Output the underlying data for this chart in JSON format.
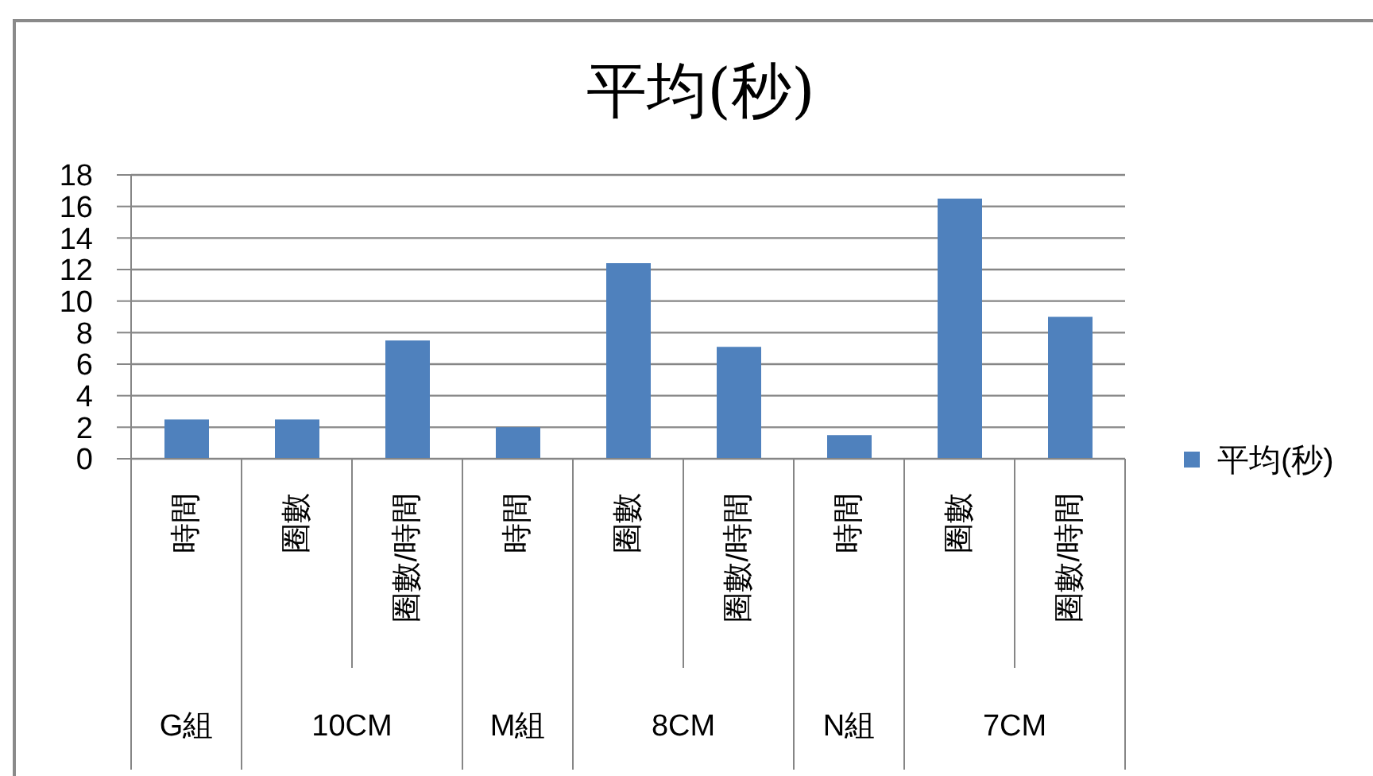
{
  "chart_data": {
    "type": "bar",
    "title": "平均(秒)",
    "categories": [
      "時間",
      "圈數",
      "圈數/時間",
      "時間",
      "圈數",
      "圈數/時間",
      "時間",
      "圈數",
      "圈數/時間"
    ],
    "series": [
      {
        "name": "平均(秒)",
        "color": "#4f81bd",
        "values": [
          2.5,
          2.5,
          7.5,
          2.0,
          12.4,
          7.1,
          1.5,
          16.5,
          9.0
        ]
      }
    ],
    "ylim": [
      0,
      18
    ],
    "yticks": [
      0,
      2,
      4,
      6,
      8,
      10,
      12,
      14,
      16,
      18
    ],
    "grid": "y",
    "legend": "right",
    "annotations": [
      "G組",
      "10CM",
      "M組",
      "8CM",
      "N組",
      "7CM"
    ]
  }
}
